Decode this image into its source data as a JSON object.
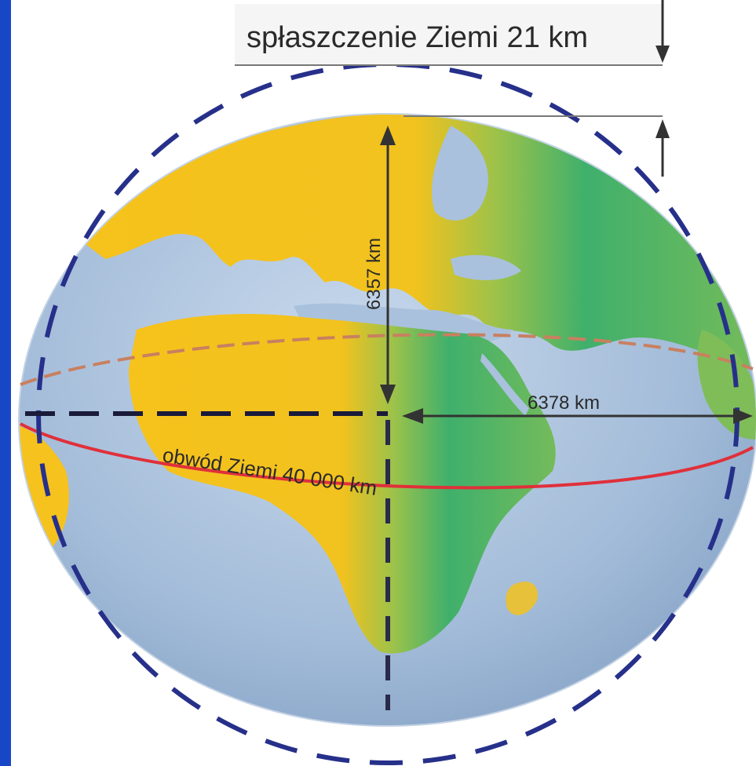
{
  "labels": {
    "flattening": "spłaszczenie Ziemi 21 km",
    "polar_radius": "6357 km",
    "equatorial_radius": "6378 km",
    "circumference": "obwód Ziemi 40 000 km"
  },
  "colors": {
    "frame": "#1747c6",
    "ocean": "#9cb7d6",
    "land_low": "#f7c21a",
    "land_high": "#47b56a",
    "dashed_circle": "#26308a",
    "equator": "#e0303a",
    "tropic": "#c88060",
    "axis_line": "#333333"
  }
}
